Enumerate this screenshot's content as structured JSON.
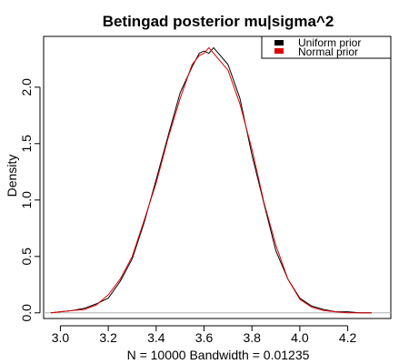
{
  "chart_data": {
    "type": "line",
    "title": "Betingad posterior mu|sigma^2",
    "xlabel": "N = 10000   Bandwidth = 0.01235",
    "ylabel": "Density",
    "xlim": [
      2.93,
      4.38
    ],
    "ylim": [
      -0.05,
      2.45
    ],
    "x_ticks": [
      3.0,
      3.2,
      3.4,
      3.6,
      3.8,
      4.0,
      4.2
    ],
    "x_tick_labels": [
      "3.0",
      "3.2",
      "3.4",
      "3.6",
      "3.8",
      "4.0",
      "4.2"
    ],
    "y_ticks": [
      0.0,
      0.5,
      1.0,
      1.5,
      2.0
    ],
    "y_tick_labels": [
      "0.0",
      "0.5",
      "1.0",
      "1.5",
      "2.0"
    ],
    "baseline": 0,
    "legend_position": "top-right",
    "grid": false,
    "series": [
      {
        "name": "Uniform prior",
        "color": "#000000",
        "x": [
          2.96,
          3.0,
          3.05,
          3.1,
          3.15,
          3.2,
          3.25,
          3.3,
          3.35,
          3.4,
          3.45,
          3.5,
          3.55,
          3.58,
          3.6,
          3.62,
          3.64,
          3.66,
          3.7,
          3.75,
          3.8,
          3.85,
          3.9,
          3.95,
          4.0,
          4.05,
          4.1,
          4.15,
          4.2,
          4.25,
          4.3
        ],
        "y": [
          0.0,
          0.01,
          0.02,
          0.04,
          0.08,
          0.13,
          0.28,
          0.48,
          0.8,
          1.18,
          1.57,
          1.95,
          2.18,
          2.3,
          2.32,
          2.3,
          2.35,
          2.3,
          2.2,
          1.9,
          1.4,
          0.97,
          0.55,
          0.3,
          0.13,
          0.06,
          0.03,
          0.01,
          0.01,
          0.0,
          0.0
        ]
      },
      {
        "name": "Normal prior",
        "color": "#dd0000",
        "x": [
          2.96,
          3.0,
          3.05,
          3.1,
          3.15,
          3.2,
          3.25,
          3.3,
          3.35,
          3.4,
          3.45,
          3.5,
          3.55,
          3.58,
          3.6,
          3.62,
          3.64,
          3.66,
          3.7,
          3.75,
          3.8,
          3.85,
          3.9,
          3.95,
          4.0,
          4.05,
          4.1,
          4.15,
          4.2,
          4.25,
          4.3
        ],
        "y": [
          0.0,
          0.01,
          0.02,
          0.03,
          0.07,
          0.16,
          0.3,
          0.5,
          0.82,
          1.15,
          1.55,
          1.9,
          2.2,
          2.28,
          2.3,
          2.35,
          2.3,
          2.25,
          2.15,
          1.85,
          1.45,
          0.98,
          0.6,
          0.3,
          0.12,
          0.05,
          0.02,
          0.01,
          0.0,
          0.0,
          0.0
        ]
      }
    ]
  }
}
